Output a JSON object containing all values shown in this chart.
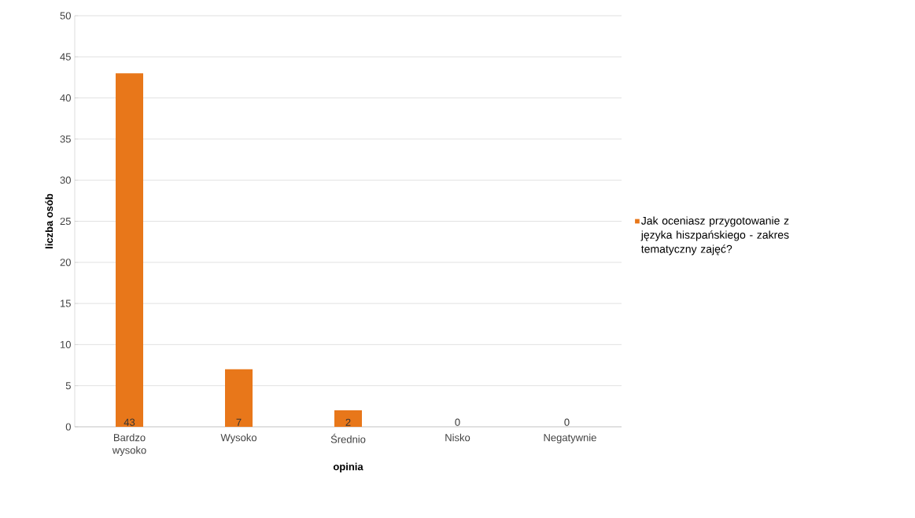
{
  "chart_data": {
    "type": "bar",
    "xlabel": "opinia",
    "ylabel": "liczba osób",
    "categories": [
      "Bardzo wysoko",
      "Wysoko",
      "Średnio",
      "Nisko",
      "Negatywnie"
    ],
    "series": [
      {
        "name": "Jak oceniasz przygotowanie z języka hiszpańskiego - zakres tematyczny zajęć?",
        "color": "#e8771a",
        "values": [
          43,
          7,
          2,
          0,
          0
        ]
      }
    ],
    "ylim": [
      0,
      50
    ],
    "yticks": [
      0,
      5,
      10,
      15,
      20,
      25,
      30,
      35,
      40,
      45,
      50
    ],
    "grid": "y",
    "legend": "right",
    "data_labels": true
  }
}
